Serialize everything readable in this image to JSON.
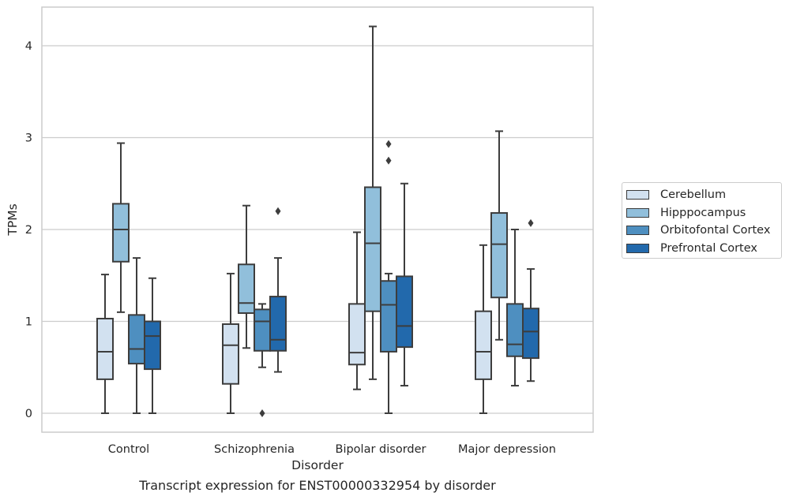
{
  "chart_data": {
    "type": "boxplot",
    "xlabel": "Disorder",
    "ylabel": "TPMs",
    "caption": "Transcript expression for ENST00000332954 by disorder",
    "ylim": [
      -0.2,
      4.3
    ],
    "yticks": [
      "0",
      "1",
      "2",
      "3",
      "4"
    ],
    "grid": "horizontal",
    "legend_position": "right",
    "categories": [
      "Control",
      "Schizophrenia",
      "Bipolar disorder",
      "Major depression"
    ],
    "series": [
      {
        "name": "Cerebellum",
        "color": "#d2e1f0",
        "boxes": [
          {
            "whislo": 0.0,
            "q1": 0.37,
            "med": 0.67,
            "q3": 1.03,
            "whishi": 1.51,
            "fliers": []
          },
          {
            "whislo": 0.0,
            "q1": 0.32,
            "med": 0.74,
            "q3": 0.97,
            "whishi": 1.52,
            "fliers": []
          },
          {
            "whislo": 0.26,
            "q1": 0.53,
            "med": 0.66,
            "q3": 1.19,
            "whishi": 1.97,
            "fliers": []
          },
          {
            "whislo": 0.0,
            "q1": 0.37,
            "med": 0.67,
            "q3": 1.11,
            "whishi": 1.83,
            "fliers": []
          }
        ]
      },
      {
        "name": "Hipppocampus",
        "color": "#91bfdb",
        "boxes": [
          {
            "whislo": 1.1,
            "q1": 1.65,
            "med": 2.0,
            "q3": 2.28,
            "whishi": 2.94,
            "fliers": []
          },
          {
            "whislo": 0.71,
            "q1": 1.09,
            "med": 1.2,
            "q3": 1.62,
            "whishi": 2.26,
            "fliers": []
          },
          {
            "whislo": 0.37,
            "q1": 1.11,
            "med": 1.85,
            "q3": 2.46,
            "whishi": 4.21,
            "fliers": []
          },
          {
            "whislo": 0.8,
            "q1": 1.26,
            "med": 1.84,
            "q3": 2.18,
            "whishi": 3.07,
            "fliers": []
          }
        ]
      },
      {
        "name": "Orbitofontal Cortex",
        "color": "#4e8fc0",
        "boxes": [
          {
            "whislo": 0.0,
            "q1": 0.54,
            "med": 0.7,
            "q3": 1.07,
            "whishi": 1.69,
            "fliers": []
          },
          {
            "whislo": 0.5,
            "q1": 0.68,
            "med": 1.0,
            "q3": 1.13,
            "whishi": 1.19,
            "fliers": [
              0.0
            ]
          },
          {
            "whislo": 0.0,
            "q1": 0.67,
            "med": 1.18,
            "q3": 1.44,
            "whishi": 1.52,
            "fliers": [
              2.75,
              2.93
            ]
          },
          {
            "whislo": 0.3,
            "q1": 0.62,
            "med": 0.75,
            "q3": 1.19,
            "whishi": 2.0,
            "fliers": []
          }
        ]
      },
      {
        "name": "Prefrontal Cortex",
        "color": "#2269ac",
        "boxes": [
          {
            "whislo": 0.0,
            "q1": 0.48,
            "med": 0.84,
            "q3": 1.0,
            "whishi": 1.47,
            "fliers": []
          },
          {
            "whislo": 0.45,
            "q1": 0.68,
            "med": 0.8,
            "q3": 1.27,
            "whishi": 1.69,
            "fliers": [
              2.2
            ]
          },
          {
            "whislo": 0.3,
            "q1": 0.72,
            "med": 0.95,
            "q3": 1.49,
            "whishi": 2.5,
            "fliers": []
          },
          {
            "whislo": 0.35,
            "q1": 0.6,
            "med": 0.89,
            "q3": 1.14,
            "whishi": 1.57,
            "fliers": [
              2.07
            ]
          }
        ]
      }
    ]
  }
}
